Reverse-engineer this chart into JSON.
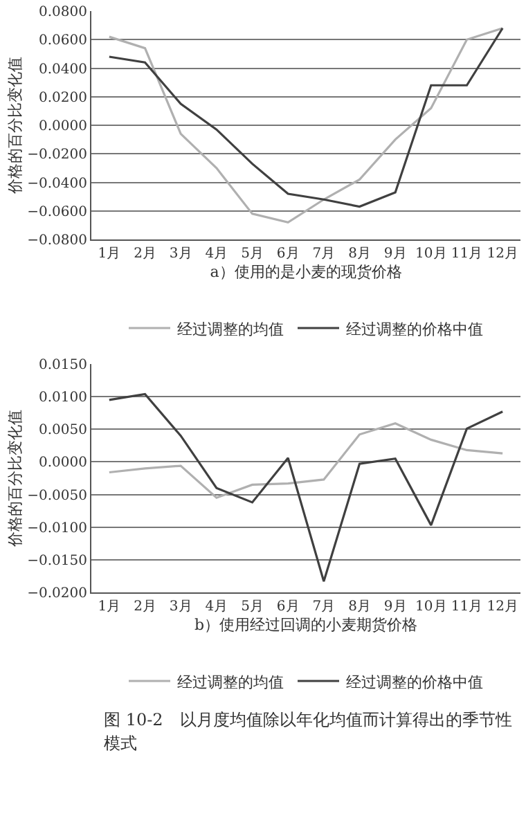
{
  "chart_data": [
    {
      "type": "line",
      "xlabel": "a）使用的是小麦的现货价格",
      "ylabel": "价格的百分比变化值",
      "categories": [
        "1月",
        "2月",
        "3月",
        "4月",
        "5月",
        "6月",
        "7月",
        "8月",
        "9月",
        "10月",
        "11月",
        "12月"
      ],
      "series": [
        {
          "name": "经过调整的均值",
          "color": "#b0b0b0",
          "values": [
            0.062,
            0.054,
            -0.006,
            -0.03,
            -0.062,
            -0.068,
            -0.052,
            -0.038,
            -0.01,
            0.012,
            0.06,
            0.068
          ]
        },
        {
          "name": "经过调整的价格中值",
          "color": "#404040",
          "values": [
            0.048,
            0.044,
            0.015,
            -0.003,
            -0.027,
            -0.048,
            -0.052,
            -0.057,
            -0.047,
            0.028,
            0.028,
            0.068
          ]
        }
      ],
      "ylim": [
        -0.08,
        0.08
      ],
      "yticks": [
        {
          "value": -0.08,
          "label": "−0.0800"
        },
        {
          "value": -0.06,
          "label": "−0.0600"
        },
        {
          "value": -0.04,
          "label": "−0.0400"
        },
        {
          "value": -0.02,
          "label": "−0.0200"
        },
        {
          "value": 0,
          "label": "0.0000"
        },
        {
          "value": 0.02,
          "label": "0.0200"
        },
        {
          "value": 0.04,
          "label": "0.0400"
        },
        {
          "value": 0.06,
          "label": "0.0600"
        },
        {
          "value": 0.08,
          "label": "0.0800"
        }
      ],
      "grid": "y",
      "legend": "bottom",
      "marker": "none",
      "line_style": "solid"
    },
    {
      "type": "line",
      "xlabel": "b）使用经过回调的小麦期货价格",
      "ylabel": "价格的百分比变化值",
      "categories": [
        "1月",
        "2月",
        "3月",
        "4月",
        "5月",
        "6月",
        "7月",
        "8月",
        "9月",
        "10月",
        "11月",
        "12月"
      ],
      "series": [
        {
          "name": "经过调整的均值",
          "color": "#b0b0b0",
          "values": [
            -0.0016,
            -0.001,
            -0.0006,
            -0.0055,
            -0.0035,
            -0.0033,
            -0.0027,
            0.0042,
            0.0059,
            0.0034,
            0.0018,
            0.0013
          ]
        },
        {
          "name": "经过调整的价格中值",
          "color": "#404040",
          "values": [
            0.0095,
            0.0104,
            0.004,
            -0.004,
            -0.0062,
            0.0006,
            -0.0183,
            -0.0003,
            0.0005,
            -0.0097,
            0.0051,
            0.0077
          ]
        }
      ],
      "ylim": [
        -0.02,
        0.015
      ],
      "yticks": [
        {
          "value": -0.02,
          "label": "−0.0200"
        },
        {
          "value": -0.015,
          "label": "−0.0150"
        },
        {
          "value": -0.01,
          "label": "−0.0100"
        },
        {
          "value": -0.005,
          "label": "−0.0050"
        },
        {
          "value": 0,
          "label": "0.0000"
        },
        {
          "value": 0.005,
          "label": "0.0050"
        },
        {
          "value": 0.01,
          "label": "0.0100"
        },
        {
          "value": 0.015,
          "label": "0.0150"
        }
      ],
      "grid": "y",
      "legend": "bottom",
      "marker": "none",
      "line_style": "solid",
      "annotations": [
        "图 10-2　以月度均值除以年化均值而计算得出的季节性模式"
      ]
    }
  ]
}
